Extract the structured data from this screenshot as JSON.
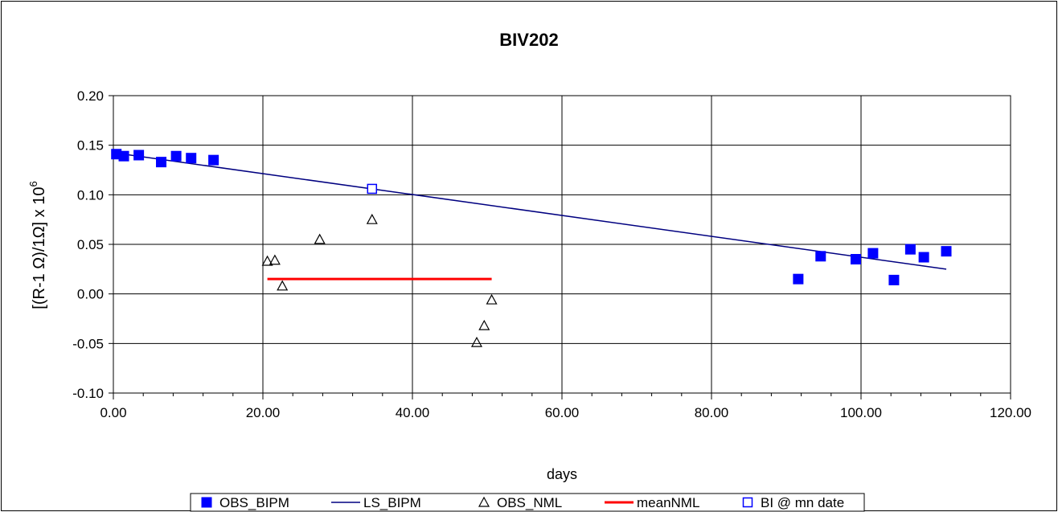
{
  "chart_data": {
    "type": "scatter",
    "title": "BIV202",
    "xlabel": "days",
    "ylabel": "[(R-1 Ω)/1Ω] x 10",
    "ylabel_sup": "6",
    "xlim": [
      0,
      120
    ],
    "ylim": [
      -0.1,
      0.2
    ],
    "xticks": [
      0,
      20,
      40,
      60,
      80,
      100,
      120
    ],
    "xtick_labels": [
      "0.00",
      "20.00",
      "40.00",
      "60.00",
      "80.00",
      "100.00",
      "120.00"
    ],
    "yticks": [
      -0.1,
      -0.05,
      0,
      0.05,
      0.1,
      0.15,
      0.2
    ],
    "ytick_labels": [
      "-0.10",
      "-0.05",
      "0.00",
      "0.05",
      "0.10",
      "0.15",
      "0.20"
    ],
    "grid": true,
    "legend_position": "bottom",
    "series": [
      {
        "name": "OBS_BIPM",
        "kind": "marker",
        "marker": "filled-square",
        "color": "#0000ff",
        "points": [
          [
            0.4,
            0.141
          ],
          [
            1.4,
            0.139
          ],
          [
            3.4,
            0.14
          ],
          [
            6.4,
            0.133
          ],
          [
            8.4,
            0.139
          ],
          [
            10.4,
            0.137
          ],
          [
            13.4,
            0.135
          ],
          [
            91.6,
            0.015
          ],
          [
            94.6,
            0.038
          ],
          [
            99.3,
            0.035
          ],
          [
            101.6,
            0.041
          ],
          [
            104.4,
            0.014
          ],
          [
            106.6,
            0.045
          ],
          [
            108.4,
            0.037
          ],
          [
            111.4,
            0.043
          ]
        ]
      },
      {
        "name": "LS_BIPM",
        "kind": "line",
        "color": "#000080",
        "points": [
          [
            0.4,
            0.142
          ],
          [
            111.4,
            0.025
          ]
        ]
      },
      {
        "name": "OBS_NML",
        "kind": "marker",
        "marker": "open-triangle",
        "color": "#000000",
        "points": [
          [
            20.6,
            0.033
          ],
          [
            21.6,
            0.034
          ],
          [
            22.6,
            0.008
          ],
          [
            27.6,
            0.055
          ],
          [
            34.6,
            0.075
          ],
          [
            48.6,
            -0.049
          ],
          [
            49.6,
            -0.032
          ],
          [
            50.6,
            -0.006
          ]
        ]
      },
      {
        "name": "meanNML",
        "kind": "line",
        "color": "#ff0000",
        "points": [
          [
            20.6,
            0.015
          ],
          [
            50.6,
            0.015
          ]
        ]
      },
      {
        "name": "BI @ mn date",
        "kind": "marker",
        "marker": "open-square",
        "color": "#0000ff",
        "points": [
          [
            34.6,
            0.106
          ]
        ]
      }
    ]
  }
}
